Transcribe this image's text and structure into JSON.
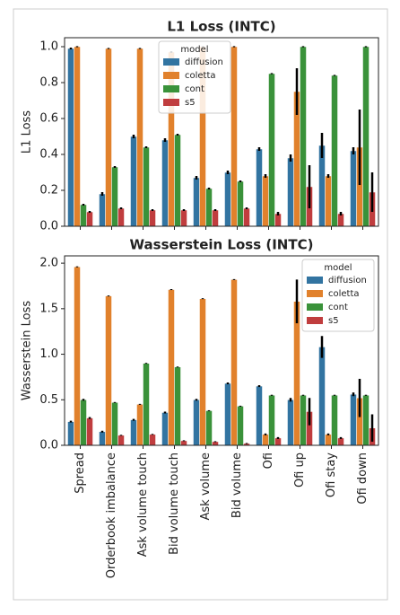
{
  "chart_data": [
    {
      "type": "bar",
      "title": "L1 Loss (INTC)",
      "y_label": "L1 Loss",
      "categories": [
        null,
        null,
        null,
        null,
        null,
        null,
        null,
        null,
        null,
        null
      ],
      "ylim": [
        0,
        1.05
      ],
      "yticks": [
        {
          "value": 0,
          "label": "0.0"
        },
        {
          "value": 0.2,
          "label": "0.2"
        },
        {
          "value": 0.4,
          "label": "0.4"
        },
        {
          "value": 0.6,
          "label": "0.6"
        },
        {
          "value": 0.8,
          "label": "0.8"
        },
        {
          "value": 1.0,
          "label": "1.0"
        }
      ],
      "legend_title": "model",
      "legend": "upper center",
      "series": [
        {
          "name": "diffusion",
          "color": "#3274a1",
          "values": [
            0.99,
            0.18,
            0.5,
            0.48,
            0.27,
            0.3,
            0.43,
            0.38,
            0.45,
            0.42
          ],
          "errors": [
            0.005,
            0.01,
            0.01,
            0.01,
            0.01,
            0.01,
            0.01,
            0.02,
            0.07,
            0.02
          ]
        },
        {
          "name": "coletta",
          "color": "#e1812c",
          "values": [
            1.0,
            0.99,
            0.99,
            0.97,
            1.0,
            1.0,
            0.28,
            0.75,
            0.28,
            0.44
          ],
          "errors": [
            0.003,
            0.003,
            0.003,
            0.005,
            0.003,
            0.003,
            0.01,
            0.13,
            0.01,
            0.21
          ]
        },
        {
          "name": "cont",
          "color": "#3a923a",
          "values": [
            0.12,
            0.33,
            0.44,
            0.51,
            0.21,
            0.25,
            0.85,
            1.0,
            0.84,
            1.0
          ],
          "errors": [
            0.005,
            0.005,
            0.005,
            0.005,
            0.005,
            0.005,
            0.003,
            0.003,
            0.003,
            0.003
          ]
        },
        {
          "name": "s5",
          "color": "#c03d3e",
          "values": [
            0.08,
            0.1,
            0.09,
            0.09,
            0.09,
            0.1,
            0.07,
            0.22,
            0.07,
            0.19
          ],
          "errors": [
            0.005,
            0.005,
            0.005,
            0.005,
            0.005,
            0.005,
            0.01,
            0.12,
            0.01,
            0.11
          ]
        }
      ]
    },
    {
      "type": "bar",
      "title": "Wasserstein Loss (INTC)",
      "y_label": "Wasserstein Loss",
      "categories": [
        "Spread",
        "Orderbook imbalance",
        "Ask volume touch",
        "Bid volume touch",
        "Ask volume",
        "Bid volume",
        "Ofi",
        "Ofi up",
        "Ofi stay",
        "Ofi down"
      ],
      "ylim": [
        0,
        2.08
      ],
      "yticks": [
        {
          "value": 0,
          "label": "0.0"
        },
        {
          "value": 0.5,
          "label": "0.5"
        },
        {
          "value": 1.0,
          "label": "1.0"
        },
        {
          "value": 1.5,
          "label": "1.5"
        },
        {
          "value": 2.0,
          "label": "2.0"
        }
      ],
      "legend_title": "model",
      "legend": "upper right",
      "series": [
        {
          "name": "diffusion",
          "color": "#3274a1",
          "values": [
            0.26,
            0.15,
            0.28,
            0.36,
            0.5,
            0.68,
            0.65,
            0.5,
            1.08,
            0.56
          ],
          "errors": [
            0.01,
            0.01,
            0.01,
            0.01,
            0.01,
            0.01,
            0.01,
            0.02,
            0.12,
            0.02
          ]
        },
        {
          "name": "coletta",
          "color": "#e1812c",
          "values": [
            1.96,
            1.64,
            0.45,
            1.71,
            1.61,
            1.82,
            0.12,
            1.58,
            0.12,
            0.52
          ],
          "errors": [
            0.005,
            0.005,
            0.005,
            0.005,
            0.005,
            0.005,
            0.01,
            0.24,
            0.01,
            0.21
          ]
        },
        {
          "name": "cont",
          "color": "#3a923a",
          "values": [
            0.5,
            0.47,
            0.9,
            0.86,
            0.38,
            0.43,
            0.55,
            0.55,
            0.55,
            0.55
          ],
          "errors": [
            0.01,
            0.005,
            0.005,
            0.005,
            0.005,
            0.005,
            0.005,
            0.005,
            0.005,
            0.005
          ]
        },
        {
          "name": "s5",
          "color": "#c03d3e",
          "values": [
            0.3,
            0.11,
            0.12,
            0.05,
            0.04,
            0.02,
            0.08,
            0.37,
            0.08,
            0.19
          ],
          "errors": [
            0.01,
            0.005,
            0.005,
            0.005,
            0.005,
            0.005,
            0.01,
            0.15,
            0.01,
            0.15
          ]
        }
      ]
    }
  ]
}
